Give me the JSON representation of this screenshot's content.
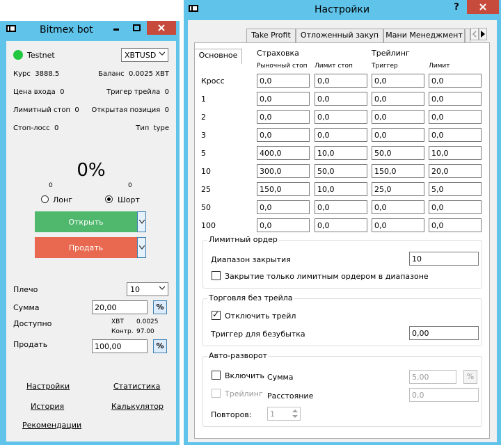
{
  "bot": {
    "title": "Bitmex bot",
    "network": "Testnet",
    "status_color": "#22c740",
    "symbol": "XBTUSD",
    "rate_label": "Курс",
    "rate_value": "3888.5",
    "balance_label": "Баланс",
    "balance_value": "0.0025 XBT",
    "entry_label": "Цена входа",
    "entry_value": "0",
    "trail_trigger_label": "Тригер трейла",
    "trail_trigger_value": "0",
    "limit_stop_label": "Лимитный стоп",
    "limit_stop_value": "0",
    "open_pos_label": "Открытая позиция",
    "open_pos_value": "0",
    "stop_loss_label": "Стоп-лосс",
    "stop_loss_value": "0",
    "type_label": "Тип",
    "type_value": "type",
    "percent": "0%",
    "long_count": "0",
    "short_count": "0",
    "long_label": "Лонг",
    "short_label": "Шорт",
    "open_label": "Открыть",
    "sell_label": "Продать",
    "open_color": "#4fb86d",
    "sell_color": "#e8694f",
    "leverage_label": "Плечо",
    "leverage_value": "10",
    "sum_label": "Сумма",
    "sum_value": "20,00",
    "pct_label": "%",
    "available_label": "Доступно",
    "avail_xbt_label": "XBT",
    "avail_xbt_value": "0.0025",
    "avail_contr_label": "Контр.",
    "avail_contr_value": "97.00",
    "sell_amount_label": "Продать",
    "sell_amount_value": "100,00",
    "links": {
      "settings": "Настройки",
      "stats": "Статистика",
      "history": "История",
      "calculator": "Калькулятор",
      "recommendations": "Рекомендации"
    }
  },
  "settings": {
    "title": "Настройки",
    "help_label": "?",
    "tabs": [
      "Основное",
      "Take Profit",
      "Отложенный закуп",
      "Мани Менеджмент"
    ],
    "insurance_label": "Страховка",
    "trailing_label": "Трейлинг",
    "columns": [
      "Рыночный стоп",
      "Лимит стоп",
      "Триггер",
      "Лимит"
    ],
    "rows": [
      {
        "label": "Кросс",
        "values": [
          "0,0",
          "0,0",
          "0,0",
          "0,0"
        ]
      },
      {
        "label": "1",
        "values": [
          "0,0",
          "0,0",
          "0,0",
          "0,0"
        ]
      },
      {
        "label": "2",
        "values": [
          "0,0",
          "0,0",
          "0,0",
          "0,0"
        ]
      },
      {
        "label": "3",
        "values": [
          "0,0",
          "0,0",
          "0,0",
          "0,0"
        ]
      },
      {
        "label": "5",
        "values": [
          "400,0",
          "10,0",
          "50,0",
          "10,0"
        ]
      },
      {
        "label": "10",
        "values": [
          "300,0",
          "50,0",
          "150,0",
          "20,0"
        ]
      },
      {
        "label": "25",
        "values": [
          "150,0",
          "10,0",
          "25,0",
          "5,0"
        ]
      },
      {
        "label": "50",
        "values": [
          "0,0",
          "0,0",
          "0,0",
          "0,0"
        ]
      },
      {
        "label": "100",
        "values": [
          "0,0",
          "0,0",
          "0,0",
          "0,0"
        ]
      }
    ],
    "limit_order": {
      "title": "Лимитный ордер",
      "range_label": "Диапазон закрытия",
      "range_value": "10",
      "only_limit_label": "Закрытие только лимитным ордером в диапазоне"
    },
    "no_trail": {
      "title": "Торговля без трейла",
      "disable_label": "Отключить трейл",
      "breakeven_label": "Триггер для безубытка",
      "breakeven_value": "0,00"
    },
    "auto_reverse": {
      "title": "Авто-разворот",
      "enable_label": "Включить",
      "sum_label": "Сумма",
      "sum_value": "5,00",
      "pct_label": "%",
      "trailing_label": "Трейлинг",
      "distance_label": "Расстояние",
      "distance_value": "0,0",
      "repeats_label": "Повторов:",
      "repeats_value": "1"
    }
  }
}
